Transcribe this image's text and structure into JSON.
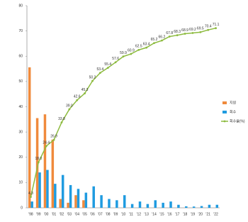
{
  "chart_data": {
    "type": "bar-line",
    "categories": [
      "'98",
      "'99",
      "'00",
      "'01",
      "'02",
      "'03",
      "'04",
      "'05",
      "'06",
      "'07",
      "'08",
      "'09",
      "'10",
      "'11",
      "'12",
      "'13",
      "'14",
      "'15",
      "'16",
      "'17",
      "'18",
      "'19",
      "'20",
      "'21",
      "'22"
    ],
    "series": [
      {
        "name": "지원",
        "type": "bar",
        "color": "#f08a3c",
        "values": [
          55.6,
          35.5,
          37.0,
          27.0,
          3.5,
          2.0,
          5.0,
          3.0,
          0,
          0,
          0,
          0,
          0,
          0,
          0,
          0,
          0,
          0,
          0,
          0,
          0,
          0,
          0,
          0,
          0
        ]
      },
      {
        "name": "회수",
        "type": "bar",
        "color": "#1f9be0",
        "values": [
          2.5,
          14.0,
          15.0,
          9.5,
          13.0,
          9.0,
          7.5,
          6.0,
          8.5,
          5.0,
          3.5,
          3.0,
          5.0,
          1.5,
          2.5,
          1.5,
          3.0,
          2.0,
          2.5,
          1.2,
          0.6,
          0.5,
          0.7,
          1.2,
          1.2
        ]
      },
      {
        "name": "회수율(%)",
        "type": "line",
        "color": "#8dbb3f",
        "values": [
          4.3,
          18.0,
          24.4,
          26.9,
          33.8,
          39.0,
          42.6,
          45.3,
          50.2,
          53.4,
          55.4,
          57.6,
          59.9,
          60.9,
          62.5,
          63.4,
          65.2,
          66.2,
          67.8,
          68.3,
          68.9,
          69.2,
          69.5,
          70.4,
          71.1
        ],
        "value_labels": [
          "4.3",
          "18.0",
          "24.4",
          "26.9",
          "33.8",
          "39.0",
          "42.6",
          "45.3",
          "50.2",
          "53.4",
          "55.4",
          "57.6",
          "59.9",
          "60.9",
          "62.5",
          "63.4",
          "65.2",
          "66.2",
          "67.8",
          "68.3",
          "68.9",
          "69.2",
          "69.5",
          "70.4",
          "71.1"
        ]
      }
    ],
    "ylim": [
      0,
      80
    ],
    "yticks": [
      0,
      10,
      20,
      30,
      40,
      50,
      60,
      70,
      80
    ],
    "grid": false,
    "legend": "right"
  }
}
